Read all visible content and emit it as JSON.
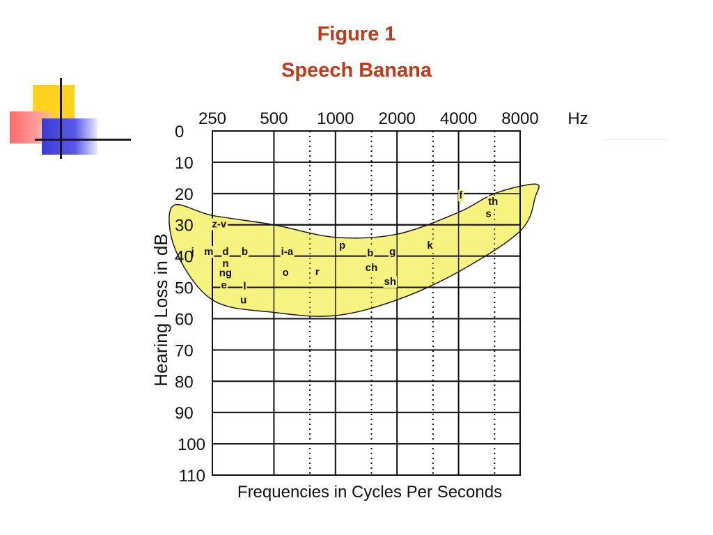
{
  "slide": {
    "title": "Figure 1",
    "subtitle": "Speech Banana"
  },
  "colors": {
    "title": "#c0391b",
    "banana_fill": "#f6f27a",
    "banana_stroke": "#1a1a1a",
    "grid": "#111111",
    "deco_yellow": "#ffd21f",
    "deco_red": "#ff6b6b",
    "deco_blue": "#3b3bd6"
  },
  "chart_data": {
    "type": "audiogram",
    "x_unit": "Hz",
    "xlabel": "Frequencies in Cycles Per Seconds",
    "ylabel": "Hearing Loss in dB",
    "x_ticks": [
      "250",
      "500",
      "1000",
      "2000",
      "4000",
      "8000"
    ],
    "x_minor_ticks": [
      "750",
      "1500",
      "3000",
      "6000"
    ],
    "y_ticks": [
      "0",
      "10",
      "20",
      "30",
      "40",
      "50",
      "60",
      "70",
      "80",
      "90",
      "100",
      "110"
    ],
    "ylim": [
      0,
      110
    ],
    "y_inverted": true,
    "x_scale": "log",
    "grid": true,
    "speech_banana": {
      "upper_edge": [
        [
          160,
          24
        ],
        [
          250,
          27
        ],
        [
          500,
          30
        ],
        [
          1000,
          34
        ],
        [
          2000,
          33
        ],
        [
          4000,
          26
        ],
        [
          6000,
          20
        ],
        [
          9500,
          17
        ]
      ],
      "lower_edge": [
        [
          9500,
          21
        ],
        [
          8000,
          32
        ],
        [
          4000,
          45
        ],
        [
          2000,
          54
        ],
        [
          1000,
          59
        ],
        [
          500,
          58
        ],
        [
          250,
          54
        ],
        [
          165,
          38
        ]
      ]
    },
    "phoneme_rows": [
      {
        "db": 30,
        "from": 250,
        "to": 8000
      },
      {
        "db": 40,
        "from": 250,
        "to": 8000
      },
      {
        "db": 50,
        "from": 250,
        "to": 8000
      }
    ],
    "phonemes": [
      {
        "label": "z-v",
        "freq": 270,
        "db": 29.7
      },
      {
        "label": "j",
        "freq": 200,
        "db": 38.5
      },
      {
        "label": "m",
        "freq": 240,
        "db": 38.5
      },
      {
        "label": "d",
        "freq": 290,
        "db": 38.5
      },
      {
        "label": "b",
        "freq": 360,
        "db": 38.5
      },
      {
        "label": "n",
        "freq": 290,
        "db": 42.3
      },
      {
        "label": "ng",
        "freq": 290,
        "db": 45.3
      },
      {
        "label": "e",
        "freq": 285,
        "db": 49.2
      },
      {
        "label": "l",
        "freq": 360,
        "db": 49.5
      },
      {
        "label": "u",
        "freq": 355,
        "db": 54.0
      },
      {
        "label": "i-a",
        "freq": 580,
        "db": 38.5
      },
      {
        "label": "o",
        "freq": 570,
        "db": 45.2
      },
      {
        "label": "r",
        "freq": 815,
        "db": 45.0
      },
      {
        "label": "p",
        "freq": 1080,
        "db": 36.5
      },
      {
        "label": "b",
        "freq": 1480,
        "db": 39.0
      },
      {
        "label": "g",
        "freq": 1900,
        "db": 38.5
      },
      {
        "label": "ch",
        "freq": 1500,
        "db": 43.6
      },
      {
        "label": "sh",
        "freq": 1850,
        "db": 48.1
      },
      {
        "label": "k",
        "freq": 2900,
        "db": 36.5
      },
      {
        "label": "f",
        "freq": 4100,
        "db": 20.5
      },
      {
        "label": "th",
        "freq": 5900,
        "db": 22.5
      },
      {
        "label": "s",
        "freq": 5600,
        "db": 26.4
      }
    ]
  }
}
